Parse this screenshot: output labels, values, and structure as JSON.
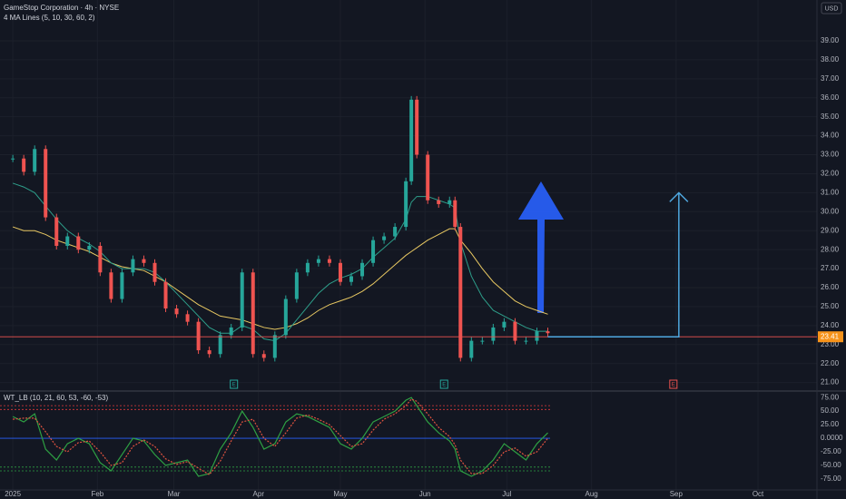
{
  "chart_data": [
    {
      "type": "candlestick",
      "title": "GameStop Corporation · 4h · NYSE",
      "indicator_label": "4 MA Lines (5, 10, 30, 60, 2)",
      "currency": "USD",
      "x": [
        0,
        4,
        8,
        12,
        16,
        20,
        24,
        28,
        32,
        36,
        40,
        44,
        48,
        52,
        56,
        60,
        64,
        68,
        72,
        76,
        80,
        84,
        88,
        92,
        96,
        100,
        104,
        108,
        112,
        116,
        120,
        124,
        128,
        132,
        136,
        140,
        144,
        146,
        148,
        152,
        156,
        160,
        162,
        164,
        168,
        172,
        176,
        180,
        184,
        188,
        192,
        196
      ],
      "values": [
        32.8,
        32.1,
        33.3,
        29.7,
        28.2,
        28.7,
        28.0,
        28.2,
        26.8,
        25.4,
        26.8,
        27.5,
        27.3,
        26.3,
        24.9,
        24.6,
        24.2,
        22.7,
        22.5,
        23.5,
        23.9,
        26.8,
        22.5,
        22.3,
        23.5,
        25.4,
        26.8,
        27.3,
        27.5,
        27.3,
        26.3,
        26.6,
        27.3,
        28.5,
        28.7,
        29.2,
        31.6,
        35.9,
        33.0,
        30.6,
        30.4,
        30.6,
        29.2,
        22.3,
        23.2,
        23.2,
        23.9,
        24.2,
        23.2,
        23.2,
        23.7,
        23.6
      ],
      "up_color": "#26a69a",
      "down_color": "#ef5350",
      "ma_lines": [
        {
          "color": "#e8c862",
          "values": [
            29.2,
            29.0,
            29.0,
            28.8,
            28.5,
            28.3,
            28.1,
            27.9,
            27.6,
            27.3,
            27.1,
            27.0,
            26.9,
            26.6,
            26.3,
            25.9,
            25.5,
            25.1,
            24.8,
            24.5,
            24.4,
            24.3,
            24.1,
            23.9,
            23.8,
            23.9,
            24.1,
            24.4,
            24.8,
            25.1,
            25.3,
            25.5,
            25.8,
            26.2,
            26.7,
            27.2,
            27.7,
            27.9,
            28.1,
            28.5,
            28.8,
            29.1,
            29.1,
            28.5,
            27.8,
            27.0,
            26.3,
            25.8,
            25.3,
            25.0,
            24.8,
            24.6
          ]
        },
        {
          "color": "#2e9e8a",
          "values": [
            31.5,
            31.3,
            31.0,
            30.3,
            29.6,
            29.0,
            28.6,
            28.3,
            27.9,
            27.3,
            27.0,
            27.0,
            27.0,
            26.8,
            26.3,
            25.7,
            25.1,
            24.5,
            23.9,
            23.6,
            23.6,
            24.0,
            23.8,
            23.3,
            23.2,
            23.6,
            24.3,
            25.0,
            25.7,
            26.2,
            26.5,
            26.7,
            27.0,
            27.6,
            28.1,
            28.6,
            29.6,
            30.5,
            30.8,
            30.8,
            30.6,
            30.4,
            30.2,
            28.4,
            26.6,
            25.5,
            24.8,
            24.5,
            24.2,
            23.9,
            23.7,
            23.7
          ]
        }
      ],
      "xlim": [
        -4.7,
        294.6
      ],
      "xticks": [
        {
          "value": 0,
          "label": "2025"
        },
        {
          "value": 31,
          "label": "Feb"
        },
        {
          "value": 59,
          "label": "Mar"
        },
        {
          "value": 90,
          "label": "Apr"
        },
        {
          "value": 120,
          "label": "May"
        },
        {
          "value": 151,
          "label": "Jun"
        },
        {
          "value": 181,
          "label": "Jul"
        },
        {
          "value": 212,
          "label": "Aug"
        },
        {
          "value": 243,
          "label": "Sep"
        },
        {
          "value": 273,
          "label": "Oct"
        }
      ],
      "ylim": [
        20.6,
        41.15
      ],
      "yticks": [
        {
          "value": 21,
          "label": "21.00"
        },
        {
          "value": 22,
          "label": "22.00"
        },
        {
          "value": 23,
          "label": "23.00"
        },
        {
          "value": 24,
          "label": "24.00"
        },
        {
          "value": 25,
          "label": "25.00"
        },
        {
          "value": 26,
          "label": "26.00"
        },
        {
          "value": 27,
          "label": "27.00"
        },
        {
          "value": 28,
          "label": "28.00"
        },
        {
          "value": 29,
          "label": "29.00"
        },
        {
          "value": 30,
          "label": "30.00"
        },
        {
          "value": 31,
          "label": "31.00"
        },
        {
          "value": 32,
          "label": "32.00"
        },
        {
          "value": 33,
          "label": "33.00"
        },
        {
          "value": 34,
          "label": "34.00"
        },
        {
          "value": 35,
          "label": "35.00"
        },
        {
          "value": 36,
          "label": "36.00"
        },
        {
          "value": 37,
          "label": "37.00"
        },
        {
          "value": 38,
          "label": "38.00"
        },
        {
          "value": 39,
          "label": "39.00"
        }
      ],
      "last_price": {
        "value": 23.41,
        "label": "23.41"
      },
      "projection": {
        "x": [
          196,
          244,
          244
        ],
        "y": [
          23.41,
          23.41,
          31.0
        ],
        "color": "#4fa8e0"
      },
      "earnings": [
        {
          "x": 81,
          "label": "E",
          "color": "#26a69a"
        },
        {
          "x": 158,
          "label": "E",
          "color": "#26a69a"
        },
        {
          "x": 242,
          "label": "E",
          "color": "#ef5350"
        }
      ]
    },
    {
      "type": "oscillator",
      "title": "WT_LB (10, 21, 60, 53, -60, -53)",
      "series": [
        {
          "color": "#2ea043",
          "values": [
            40,
            30,
            45,
            -20,
            -40,
            -10,
            0,
            -10,
            -45,
            -60,
            -30,
            0,
            -5,
            -30,
            -50,
            -45,
            -40,
            -70,
            -65,
            -20,
            10,
            50,
            20,
            -20,
            -10,
            30,
            45,
            40,
            30,
            20,
            -10,
            -20,
            0,
            30,
            40,
            50,
            70,
            75,
            60,
            30,
            10,
            -5,
            -20,
            -60,
            -70,
            -60,
            -40,
            -10,
            -25,
            -40,
            -10,
            10
          ]
        },
        {
          "color": "#e0533f",
          "values": [
            35,
            37,
            37,
            12,
            -15,
            -25,
            -8,
            -5,
            -25,
            -50,
            -45,
            -15,
            -3,
            -15,
            -38,
            -48,
            -43,
            -55,
            -67,
            -42,
            -5,
            30,
            35,
            0,
            -15,
            10,
            37,
            43,
            35,
            25,
            5,
            -15,
            -10,
            15,
            35,
            45,
            60,
            72,
            68,
            45,
            20,
            3,
            -12,
            -40,
            -65,
            -65,
            -50,
            -25,
            -18,
            -33,
            -25,
            0
          ]
        }
      ],
      "levels": [
        {
          "value": 60,
          "color": "#e03a3a"
        },
        {
          "value": 53,
          "color": "#e03a3a"
        },
        {
          "value": -60,
          "color": "#2ea043"
        },
        {
          "value": -53,
          "color": "#2ea043"
        }
      ],
      "ylim": [
        -93.4,
        83.6
      ],
      "yticks": [
        {
          "value": 75,
          "label": "75.00"
        },
        {
          "value": 50,
          "label": "50.00"
        },
        {
          "value": 25,
          "label": "25.00"
        },
        {
          "value": 0,
          "label": "0.0000"
        },
        {
          "value": -25,
          "label": "-25.00"
        },
        {
          "value": -50,
          "label": "-50.00"
        },
        {
          "value": -75,
          "label": "-75.00"
        }
      ]
    }
  ]
}
